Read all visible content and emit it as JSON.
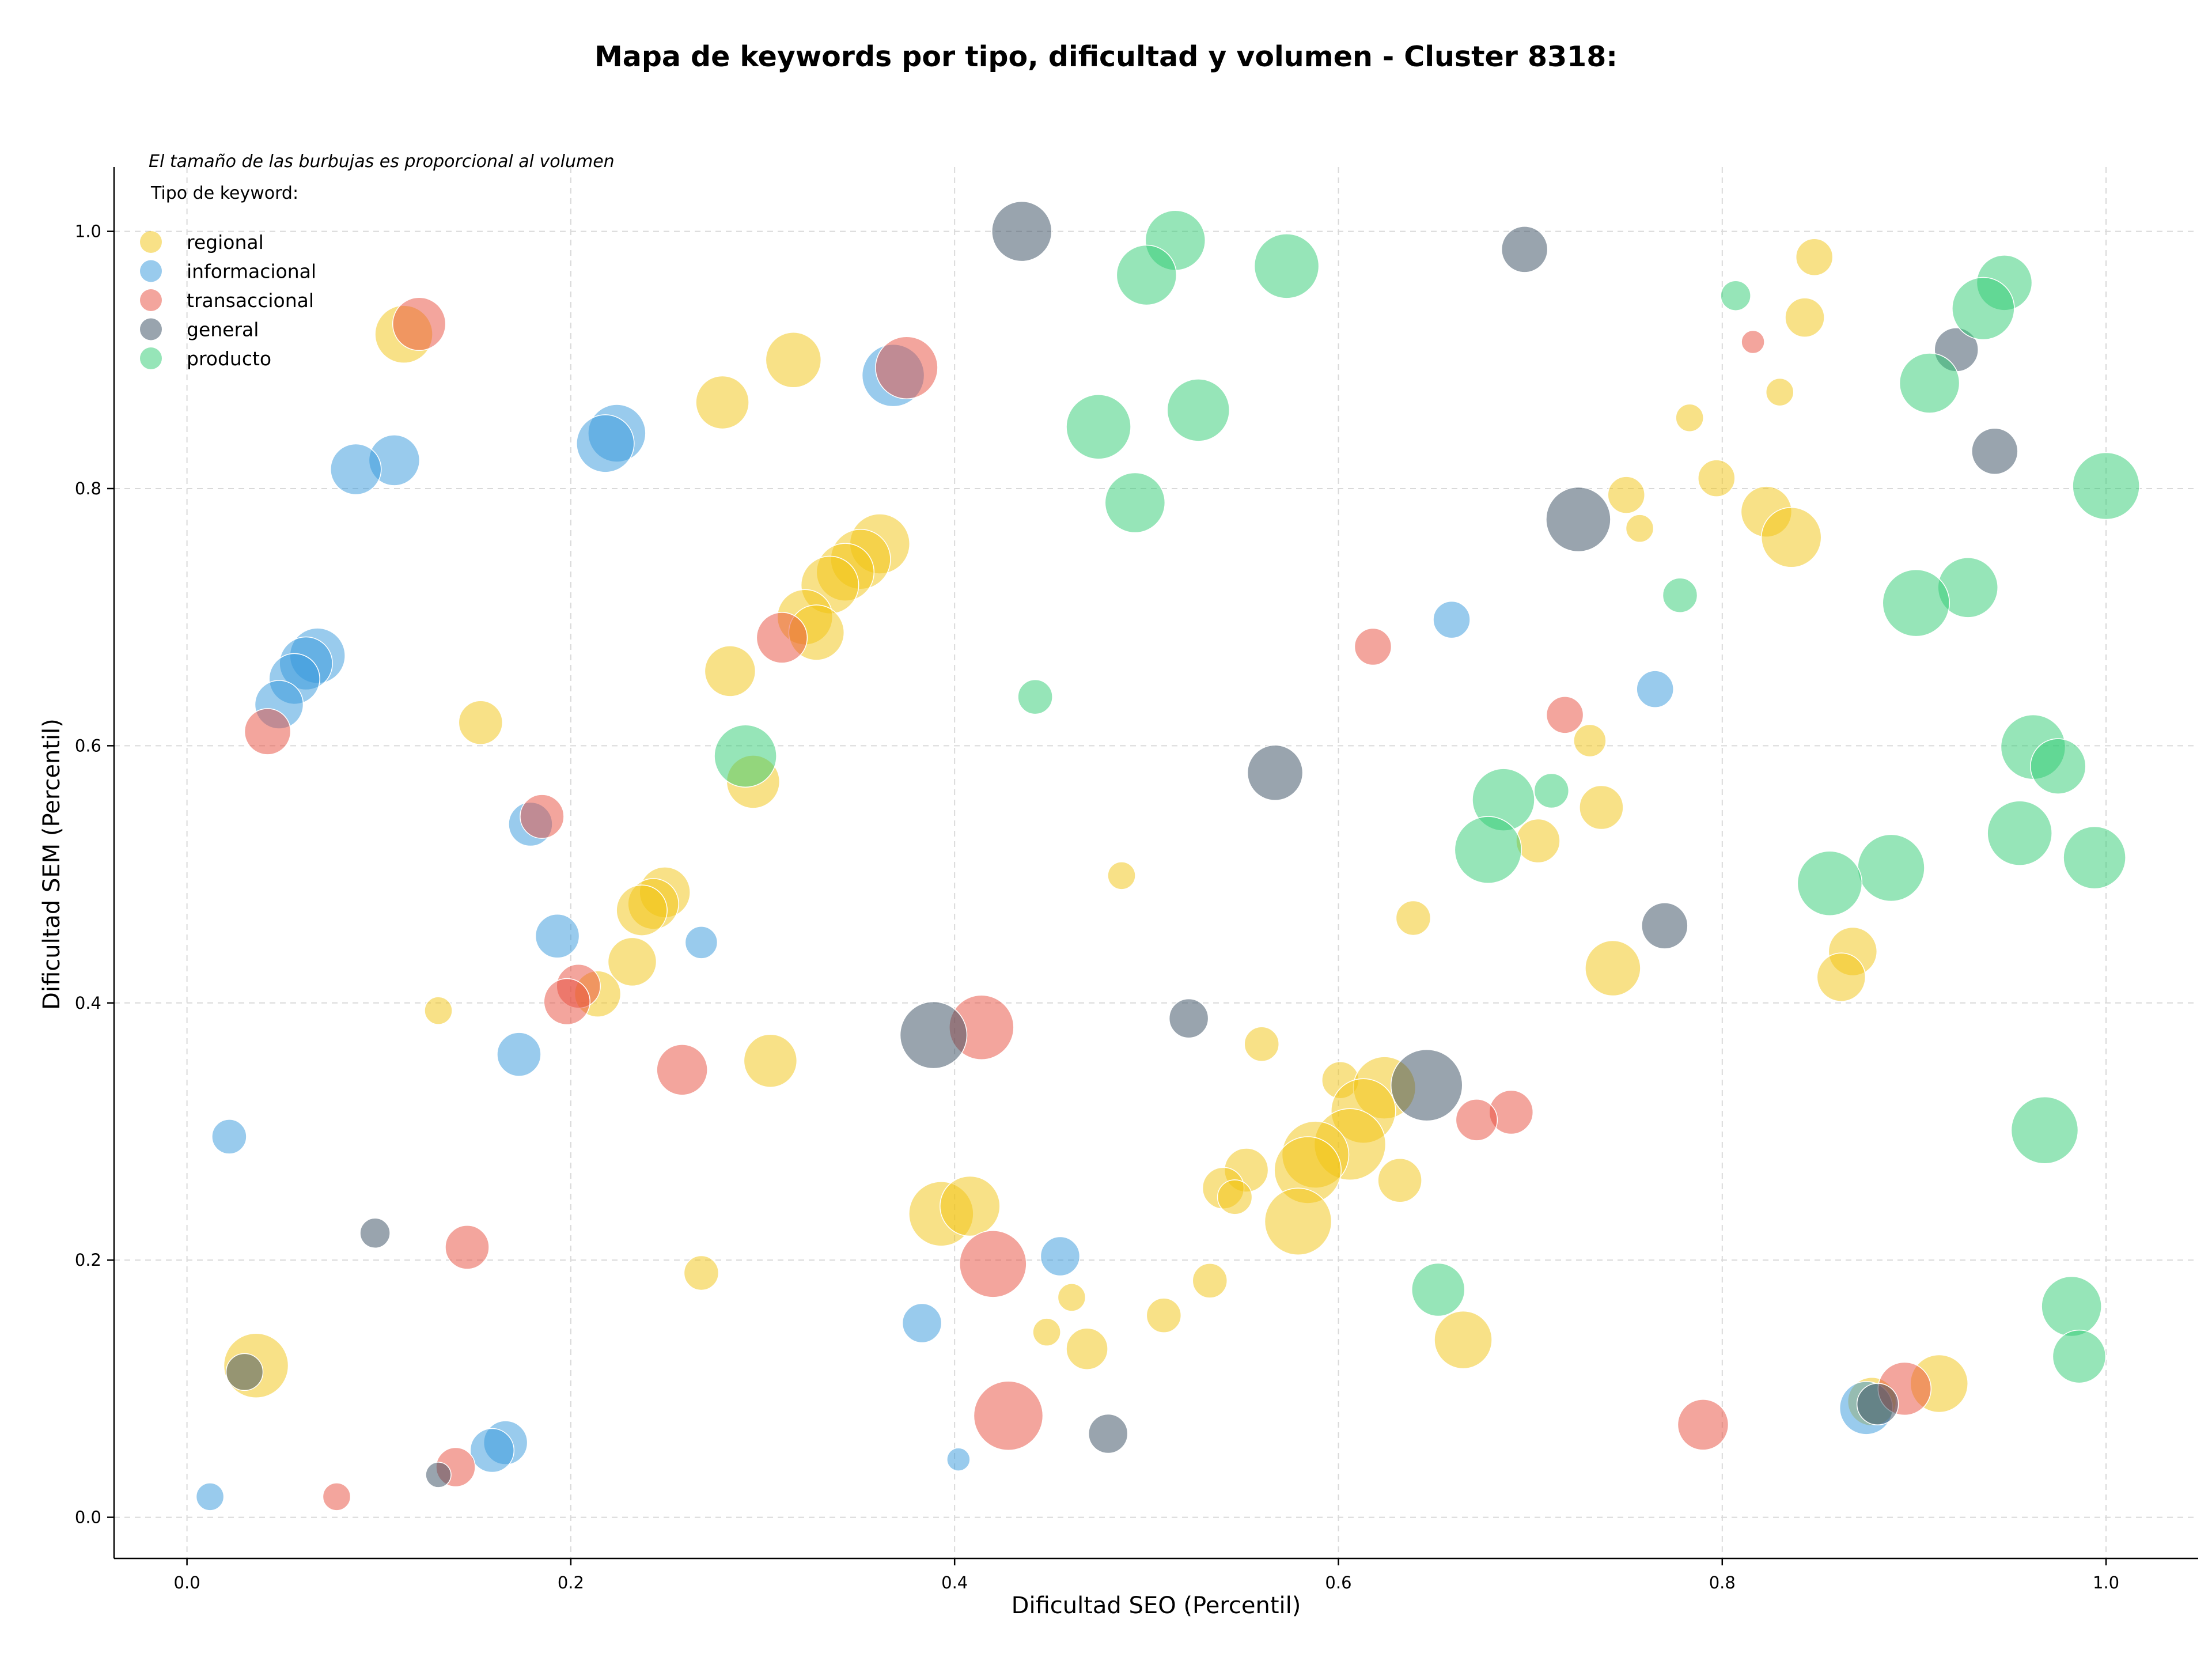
{
  "chart_data": {
    "type": "scatter",
    "title": "Mapa de keywords por tipo, dificultad y volumen - Cluster 8318:",
    "xlabel": "Dificultad SEO (Percentil)",
    "ylabel": "Dificultad SEM (Percentil)",
    "xlim": [
      -0.038,
      1.048
    ],
    "ylim": [
      -0.032,
      1.05
    ],
    "xticks": [
      0.0,
      0.2,
      0.4,
      0.6,
      0.8,
      1.0
    ],
    "yticks": [
      0.0,
      0.2,
      0.4,
      0.6,
      0.8,
      1.0
    ],
    "tick_labels_x": [
      "0.0",
      "0.2",
      "0.4",
      "0.6",
      "0.8",
      "1.0"
    ],
    "tick_labels_y": [
      "0.0",
      "0.2",
      "0.4",
      "0.6",
      "0.8",
      "1.0"
    ],
    "grid": true,
    "legend_position": "top-left",
    "legend_title": "Tipo de keyword:",
    "note": "El tamaño de las burbujas es proporcional al volumen",
    "series": [
      {
        "name": "regional",
        "color": "#f1c40f",
        "points": [
          [
            0.113,
            0.92,
            50
          ],
          [
            0.316,
            0.9,
            48
          ],
          [
            0.279,
            0.867,
            46
          ],
          [
            0.848,
            0.98,
            32
          ],
          [
            0.843,
            0.933,
            34
          ],
          [
            0.83,
            0.875,
            24
          ],
          [
            0.783,
            0.855,
            24
          ],
          [
            0.797,
            0.808,
            32
          ],
          [
            0.823,
            0.782,
            44
          ],
          [
            0.836,
            0.762,
            52
          ],
          [
            0.75,
            0.795,
            32
          ],
          [
            0.757,
            0.769,
            24
          ],
          [
            0.361,
            0.757,
            52
          ],
          [
            0.351,
            0.745,
            52
          ],
          [
            0.343,
            0.735,
            50
          ],
          [
            0.335,
            0.725,
            50
          ],
          [
            0.322,
            0.7,
            48
          ],
          [
            0.328,
            0.688,
            48
          ],
          [
            0.283,
            0.658,
            44
          ],
          [
            0.153,
            0.618,
            38
          ],
          [
            0.731,
            0.604,
            28
          ],
          [
            0.295,
            0.572,
            46
          ],
          [
            0.737,
            0.552,
            38
          ],
          [
            0.704,
            0.526,
            38
          ],
          [
            0.487,
            0.499,
            24
          ],
          [
            0.249,
            0.486,
            44
          ],
          [
            0.243,
            0.477,
            44
          ],
          [
            0.237,
            0.472,
            44
          ],
          [
            0.639,
            0.466,
            30
          ],
          [
            0.868,
            0.44,
            42
          ],
          [
            0.862,
            0.42,
            42
          ],
          [
            0.743,
            0.427,
            48
          ],
          [
            0.232,
            0.432,
            42
          ],
          [
            0.214,
            0.407,
            40
          ],
          [
            0.131,
            0.394,
            24
          ],
          [
            0.56,
            0.368,
            30
          ],
          [
            0.304,
            0.355,
            46
          ],
          [
            0.601,
            0.34,
            32
          ],
          [
            0.624,
            0.334,
            54
          ],
          [
            0.613,
            0.316,
            56
          ],
          [
            0.606,
            0.29,
            62
          ],
          [
            0.588,
            0.282,
            58
          ],
          [
            0.584,
            0.27,
            58
          ],
          [
            0.552,
            0.27,
            38
          ],
          [
            0.54,
            0.256,
            36
          ],
          [
            0.546,
            0.249,
            30
          ],
          [
            0.632,
            0.262,
            38
          ],
          [
            0.579,
            0.23,
            58
          ],
          [
            0.393,
            0.236,
            56
          ],
          [
            0.408,
            0.242,
            52
          ],
          [
            0.268,
            0.19,
            30
          ],
          [
            0.461,
            0.171,
            24
          ],
          [
            0.533,
            0.184,
            30
          ],
          [
            0.448,
            0.144,
            24
          ],
          [
            0.509,
            0.157,
            30
          ],
          [
            0.469,
            0.131,
            36
          ],
          [
            0.665,
            0.138,
            50
          ],
          [
            0.036,
            0.118,
            56
          ],
          [
            0.913,
            0.104,
            50
          ],
          [
            0.878,
            0.09,
            42
          ]
        ]
      },
      {
        "name": "informacional",
        "color": "#3498db",
        "points": [
          [
            0.368,
            0.888,
            54
          ],
          [
            0.224,
            0.843,
            50
          ],
          [
            0.218,
            0.835,
            50
          ],
          [
            0.108,
            0.822,
            44
          ],
          [
            0.088,
            0.815,
            44
          ],
          [
            0.068,
            0.67,
            48
          ],
          [
            0.062,
            0.664,
            46
          ],
          [
            0.056,
            0.652,
            44
          ],
          [
            0.048,
            0.632,
            42
          ],
          [
            0.659,
            0.698,
            32
          ],
          [
            0.765,
            0.644,
            32
          ],
          [
            0.179,
            0.539,
            38
          ],
          [
            0.193,
            0.452,
            38
          ],
          [
            0.268,
            0.447,
            28
          ],
          [
            0.173,
            0.36,
            38
          ],
          [
            0.022,
            0.296,
            30
          ],
          [
            0.455,
            0.203,
            34
          ],
          [
            0.383,
            0.151,
            34
          ],
          [
            0.166,
            0.058,
            38
          ],
          [
            0.159,
            0.052,
            38
          ],
          [
            0.402,
            0.045,
            20
          ],
          [
            0.012,
            0.016,
            24
          ],
          [
            0.875,
            0.085,
            46
          ]
        ]
      },
      {
        "name": "transaccional",
        "color": "#e74c3c",
        "points": [
          [
            0.121,
            0.928,
            46
          ],
          [
            0.375,
            0.894,
            54
          ],
          [
            0.31,
            0.684,
            44
          ],
          [
            0.816,
            0.914,
            20
          ],
          [
            0.618,
            0.677,
            32
          ],
          [
            0.718,
            0.624,
            32
          ],
          [
            0.042,
            0.611,
            40
          ],
          [
            0.185,
            0.545,
            38
          ],
          [
            0.204,
            0.413,
            38
          ],
          [
            0.198,
            0.401,
            40
          ],
          [
            0.414,
            0.381,
            56
          ],
          [
            0.258,
            0.348,
            44
          ],
          [
            0.69,
            0.315,
            38
          ],
          [
            0.672,
            0.309,
            36
          ],
          [
            0.146,
            0.21,
            38
          ],
          [
            0.42,
            0.197,
            58
          ],
          [
            0.428,
            0.079,
            60
          ],
          [
            0.79,
            0.072,
            44
          ],
          [
            0.895,
            0.1,
            46
          ],
          [
            0.14,
            0.039,
            34
          ],
          [
            0.078,
            0.016,
            24
          ]
        ]
      },
      {
        "name": "general",
        "color": "#34495e",
        "points": [
          [
            0.435,
            1.0,
            52
          ],
          [
            0.697,
            0.986,
            40
          ],
          [
            0.922,
            0.908,
            38
          ],
          [
            0.942,
            0.829,
            40
          ],
          [
            0.725,
            0.776,
            56
          ],
          [
            0.567,
            0.579,
            48
          ],
          [
            0.77,
            0.46,
            40
          ],
          [
            0.522,
            0.388,
            34
          ],
          [
            0.389,
            0.375,
            58
          ],
          [
            0.646,
            0.336,
            62
          ],
          [
            0.098,
            0.221,
            26
          ],
          [
            0.48,
            0.065,
            34
          ],
          [
            0.03,
            0.113,
            32
          ],
          [
            0.131,
            0.033,
            22
          ],
          [
            0.881,
            0.088,
            36
          ]
        ]
      },
      {
        "name": "producto",
        "color": "#2ecc71",
        "points": [
          [
            0.515,
            0.993,
            52
          ],
          [
            0.5,
            0.966,
            52
          ],
          [
            0.573,
            0.973,
            56
          ],
          [
            0.947,
            0.96,
            48
          ],
          [
            0.936,
            0.94,
            54
          ],
          [
            0.807,
            0.95,
            26
          ],
          [
            0.908,
            0.882,
            52
          ],
          [
            0.527,
            0.861,
            54
          ],
          [
            0.475,
            0.848,
            56
          ],
          [
            1.0,
            0.802,
            58
          ],
          [
            0.494,
            0.789,
            52
          ],
          [
            0.928,
            0.723,
            52
          ],
          [
            0.901,
            0.711,
            58
          ],
          [
            0.778,
            0.717,
            30
          ],
          [
            0.442,
            0.638,
            30
          ],
          [
            0.291,
            0.592,
            54
          ],
          [
            0.962,
            0.599,
            56
          ],
          [
            0.975,
            0.584,
            48
          ],
          [
            0.711,
            0.565,
            30
          ],
          [
            0.686,
            0.558,
            54
          ],
          [
            0.678,
            0.519,
            58
          ],
          [
            0.955,
            0.532,
            56
          ],
          [
            0.888,
            0.505,
            58
          ],
          [
            0.856,
            0.493,
            56
          ],
          [
            0.994,
            0.513,
            54
          ],
          [
            0.968,
            0.301,
            58
          ],
          [
            0.652,
            0.177,
            46
          ],
          [
            0.982,
            0.164,
            52
          ],
          [
            0.986,
            0.125,
            46
          ]
        ]
      }
    ]
  }
}
